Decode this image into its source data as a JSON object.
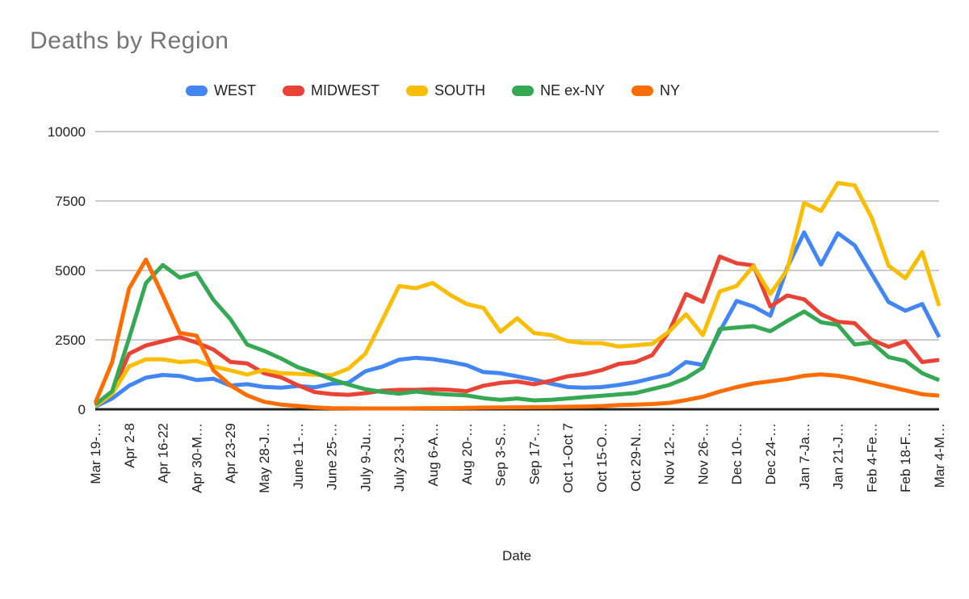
{
  "title": "Deaths by Region",
  "x_axis_title": "Date",
  "colors": {
    "background": "#ffffff",
    "title_text": "#757575",
    "axis_text": "#212121",
    "gridline": "#cccccc",
    "baseline": "#212121",
    "west": "#4285F4",
    "midwest": "#EA4335",
    "south": "#FBBC04",
    "ne_ex_ny": "#34A853",
    "ny": "#FF6D01"
  },
  "chart_data": {
    "type": "line",
    "title": "Deaths by Region",
    "xlabel": "Date",
    "ylabel": "",
    "ylim": [
      0,
      10000
    ],
    "y_gridlines": [
      0,
      2500,
      5000,
      7500,
      10000
    ],
    "legend_position": "top",
    "grid": "horizontal-only",
    "points_per_series": 51,
    "x_labels_shown_every_other_point": true,
    "x_tick_labels": [
      "Mar 19-…",
      "Apr 2-8",
      "Apr 16-22",
      "Apr 30-M…",
      "Apr 23-29",
      "May 28-J…",
      "June 11-…",
      "June 25-…",
      "July 9-Ju…",
      "July 23-J…",
      "Aug 6-A…",
      "Aug 20-…",
      "Sep 3-S…",
      "Sep 17-…",
      "Oct 1-Oct 7",
      "Oct 15-O…",
      "Oct 29-N…",
      "Nov 12-…",
      "Nov 26-…",
      "Dec 10-…",
      "Dec 24-…",
      "Jan 7-Ja…",
      "Jan 21-J…",
      "Feb 4-Fe…",
      "Feb 18-F…",
      "Mar 4-M…"
    ],
    "series": [
      {
        "name": "WEST",
        "color": "#4285F4",
        "values": [
          95,
          390,
          845,
          1140,
          1235,
          1200,
          1055,
          1100,
          855,
          905,
          805,
          775,
          840,
          790,
          920,
          955,
          1370,
          1535,
          1785,
          1855,
          1805,
          1710,
          1590,
          1340,
          1300,
          1185,
          1070,
          925,
          800,
          780,
          800,
          875,
          975,
          1120,
          1265,
          1700,
          1600,
          2800,
          3900,
          3700,
          3370,
          5100,
          6370,
          5210,
          6340,
          5900,
          4880,
          3865,
          3550,
          3790,
          2600
        ]
      },
      {
        "name": "MIDWEST",
        "color": "#EA4335",
        "values": [
          130,
          600,
          2000,
          2300,
          2450,
          2600,
          2400,
          2150,
          1710,
          1650,
          1300,
          1150,
          870,
          620,
          550,
          520,
          580,
          670,
          700,
          700,
          725,
          700,
          650,
          850,
          950,
          1000,
          900,
          1030,
          1190,
          1270,
          1410,
          1630,
          1700,
          1950,
          2800,
          4150,
          3870,
          5500,
          5260,
          5180,
          3700,
          4100,
          3960,
          3425,
          3150,
          3100,
          2500,
          2250,
          2450,
          1700,
          1780
        ]
      },
      {
        "name": "SOUTH",
        "color": "#FBBC04",
        "values": [
          115,
          555,
          1545,
          1800,
          1800,
          1700,
          1740,
          1545,
          1400,
          1250,
          1415,
          1300,
          1275,
          1245,
          1225,
          1465,
          2000,
          3200,
          4440,
          4360,
          4550,
          4130,
          3790,
          3650,
          2790,
          3280,
          2745,
          2675,
          2450,
          2385,
          2385,
          2260,
          2305,
          2355,
          2800,
          3425,
          2675,
          4245,
          4440,
          5160,
          4150,
          5020,
          7430,
          7140,
          8150,
          8060,
          6900,
          5175,
          4720,
          5660,
          3720
        ]
      },
      {
        "name": "NE ex-NY",
        "color": "#34A853",
        "values": [
          165,
          650,
          2550,
          4545,
          5195,
          4740,
          4900,
          3940,
          3250,
          2330,
          2105,
          1830,
          1515,
          1320,
          1080,
          890,
          725,
          625,
          560,
          640,
          570,
          530,
          500,
          400,
          340,
          390,
          320,
          340,
          390,
          440,
          485,
          535,
          585,
          730,
          875,
          1120,
          1500,
          2890,
          2945,
          2995,
          2810,
          3180,
          3520,
          3135,
          3040,
          2330,
          2410,
          1880,
          1740,
          1300,
          1050
        ]
      },
      {
        "name": "NY",
        "color": "#FF6D01",
        "values": [
          230,
          1700,
          4350,
          5390,
          4100,
          2750,
          2650,
          1400,
          860,
          500,
          270,
          170,
          120,
          70,
          40,
          35,
          30,
          30,
          30,
          35,
          40,
          45,
          50,
          60,
          65,
          70,
          75,
          80,
          90,
          100,
          115,
          150,
          170,
          190,
          230,
          330,
          450,
          640,
          800,
          930,
          1010,
          1090,
          1205,
          1255,
          1205,
          1100,
          960,
          820,
          680,
          540,
          490
        ]
      }
    ]
  }
}
